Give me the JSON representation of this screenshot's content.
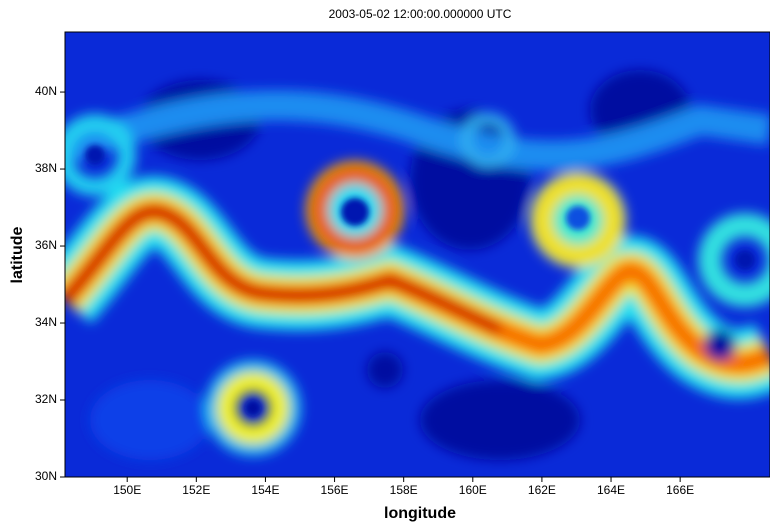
{
  "chart_data": {
    "type": "map",
    "title": "2003-05-02 12:00:00.000000 UTC",
    "x_label": "longitude",
    "y_label": "latitude",
    "xlim": [
      148.2,
      168.6
    ],
    "ylim": [
      30,
      41.56
    ],
    "xticks": [
      {
        "value": 150,
        "label": "150E"
      },
      {
        "value": 152,
        "label": "152E"
      },
      {
        "value": 154,
        "label": "154E"
      },
      {
        "value": 156,
        "label": "156E"
      },
      {
        "value": 158,
        "label": "158E"
      },
      {
        "value": 160,
        "label": "160E"
      },
      {
        "value": 162,
        "label": "162E"
      },
      {
        "value": 164,
        "label": "164E"
      },
      {
        "value": 166,
        "label": "166E"
      }
    ],
    "yticks": [
      {
        "value": 30,
        "label": "30N"
      },
      {
        "value": 32,
        "label": "32N"
      },
      {
        "value": 34,
        "label": "34N"
      },
      {
        "value": 36,
        "label": "36N"
      },
      {
        "value": 38,
        "label": "38N"
      },
      {
        "value": 40,
        "label": "40N"
      }
    ]
  }
}
